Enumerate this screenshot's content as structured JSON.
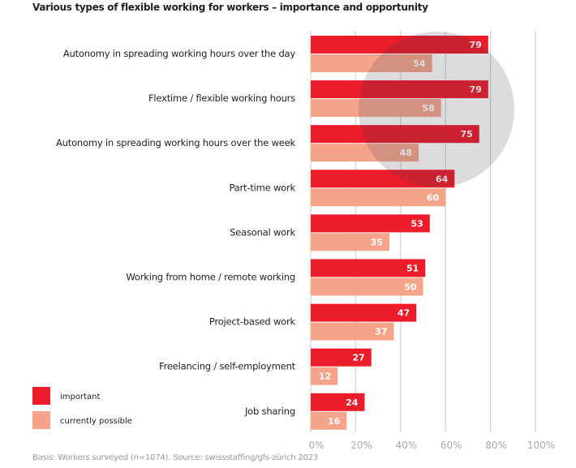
{
  "chart_data": {
    "type": "bar",
    "orientation": "horizontal",
    "title": "Various types of flexible working for workers – importance and opportunity",
    "categories": [
      "Autonomy in spreading working hours over the day",
      "Flextime / flexible working hours",
      "Autonomy in spreading working hours over the week",
      "Part-time work",
      "Seasonal work",
      "Working from home / remote working",
      "Project-based work",
      "Freelancing / self-employment",
      "Job sharing"
    ],
    "series": [
      {
        "name": "important",
        "color": "#ec1c2b",
        "values": [
          79,
          79,
          75,
          64,
          53,
          51,
          47,
          27,
          24
        ]
      },
      {
        "name": "currently possible",
        "color": "#f5a48a",
        "values": [
          54,
          58,
          48,
          60,
          35,
          50,
          37,
          12,
          16
        ]
      }
    ],
    "xlim": [
      0,
      100
    ],
    "xticks": [
      "0%",
      "20%",
      "40%",
      "60%",
      "80%",
      "100%"
    ],
    "grid": true,
    "legend_position": "bottom-left",
    "highlight": "grey circle over the top three categories",
    "footnote": "Basis: Workers surveyed (n=1074). Source: swissstaffing/gfs-zürich 2023"
  }
}
